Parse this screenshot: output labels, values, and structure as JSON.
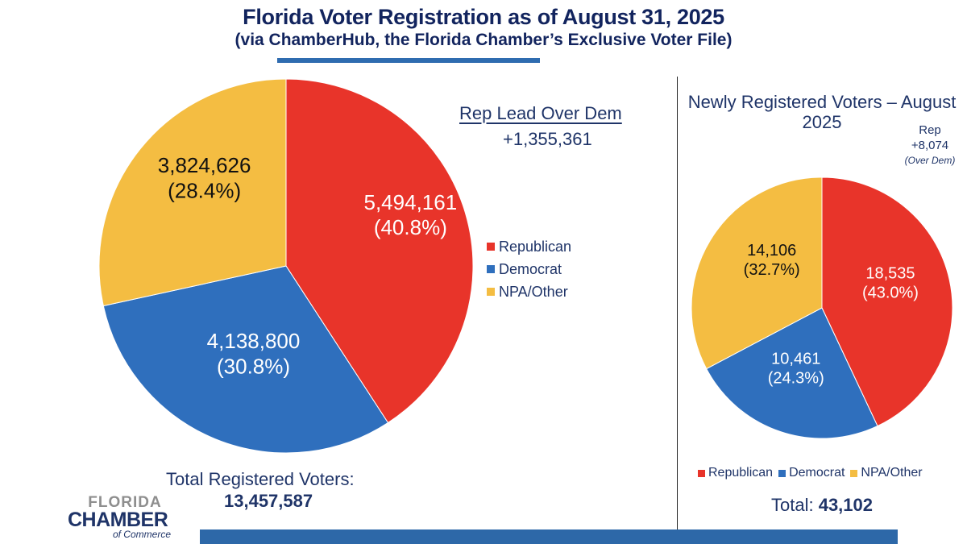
{
  "header": {
    "title": "Florida Voter Registration as of August 31, 2025",
    "subtitle": "(via ChamberHub, the Florida Chamber’s Exclusive Voter File)"
  },
  "colors": {
    "republican": "#e8342a",
    "democrat": "#2f6fbd",
    "npa_other": "#f4bd42",
    "text": "#1f3468",
    "accent_bar": "#2d68a8"
  },
  "chart_data": [
    {
      "type": "pie",
      "title": "Florida Voter Registration",
      "categories": [
        "Republican",
        "Democrat",
        "NPA/Other"
      ],
      "values": [
        5494161,
        4138800,
        3824626
      ],
      "percent_labels": [
        "40.8%",
        "30.8%",
        "28.4%"
      ],
      "value_labels": [
        "5,494,161",
        "4,138,800",
        "3,824,626"
      ],
      "legend": [
        "Republican",
        "Democrat",
        "NPA/Other"
      ],
      "legend_position": "right",
      "annotation_label": "Rep Lead Over Dem",
      "annotation_value": "+1,355,361",
      "total_label": "Total Registered Voters:",
      "total_value": "13,457,587"
    },
    {
      "type": "pie",
      "title": "Newly Registered Voters – August 2025",
      "categories": [
        "Republican",
        "Democrat",
        "NPA/Other"
      ],
      "values": [
        18535,
        10461,
        14106
      ],
      "percent_labels": [
        "43.0%",
        "24.3%",
        "32.7%"
      ],
      "value_labels": [
        "18,535",
        "10,461",
        "14,106"
      ],
      "legend": [
        "Republican",
        "Democrat",
        "NPA/Other"
      ],
      "legend_position": "bottom",
      "annotation_line1": "Rep",
      "annotation_line2": "+8,074",
      "annotation_line3": "(Over Dem)",
      "total_label": "Total: ",
      "total_value": "43,102"
    }
  ],
  "logo": {
    "line1": "FLORIDA",
    "line2": "CHAMBER",
    "line3": "of Commerce"
  }
}
